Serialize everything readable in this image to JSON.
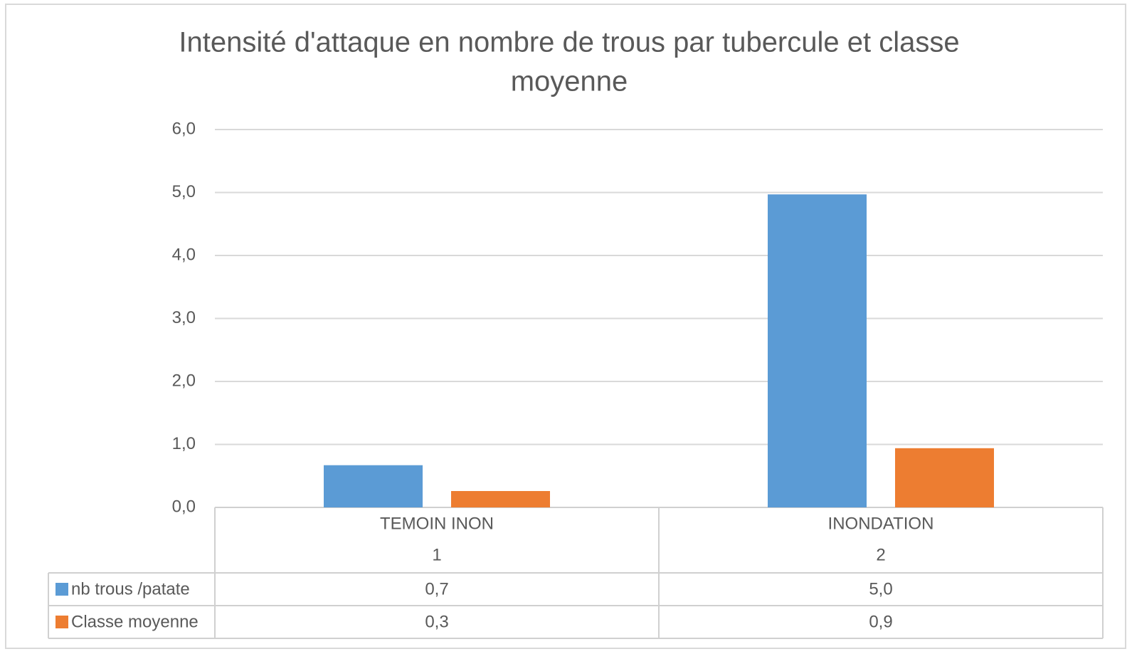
{
  "chart_data": {
    "type": "bar",
    "title": "Intensité d'attaque en nombre de trous par tubercule et classe moyenne",
    "categories": [
      "TEMOIN INON",
      "INONDATION"
    ],
    "category_sublabels": [
      "1",
      "2"
    ],
    "series": [
      {
        "name": "nb trous /patate",
        "color": "#5b9bd5",
        "values": [
          0.67,
          4.97
        ],
        "value_labels": [
          "0,7",
          "5,0"
        ]
      },
      {
        "name": "Classe moyenne",
        "color": "#ed7d31",
        "values": [
          0.26,
          0.94
        ],
        "value_labels": [
          "0,3",
          "0,9"
        ]
      }
    ],
    "ylim": [
      0,
      6
    ],
    "yticks": [
      {
        "value": 0,
        "label": "0,0"
      },
      {
        "value": 1,
        "label": "1,0"
      },
      {
        "value": 2,
        "label": "2,0"
      },
      {
        "value": 3,
        "label": "3,0"
      },
      {
        "value": 4,
        "label": "4,0"
      },
      {
        "value": 5,
        "label": "5,0"
      },
      {
        "value": 6,
        "label": "6,0"
      }
    ],
    "grid": true
  }
}
